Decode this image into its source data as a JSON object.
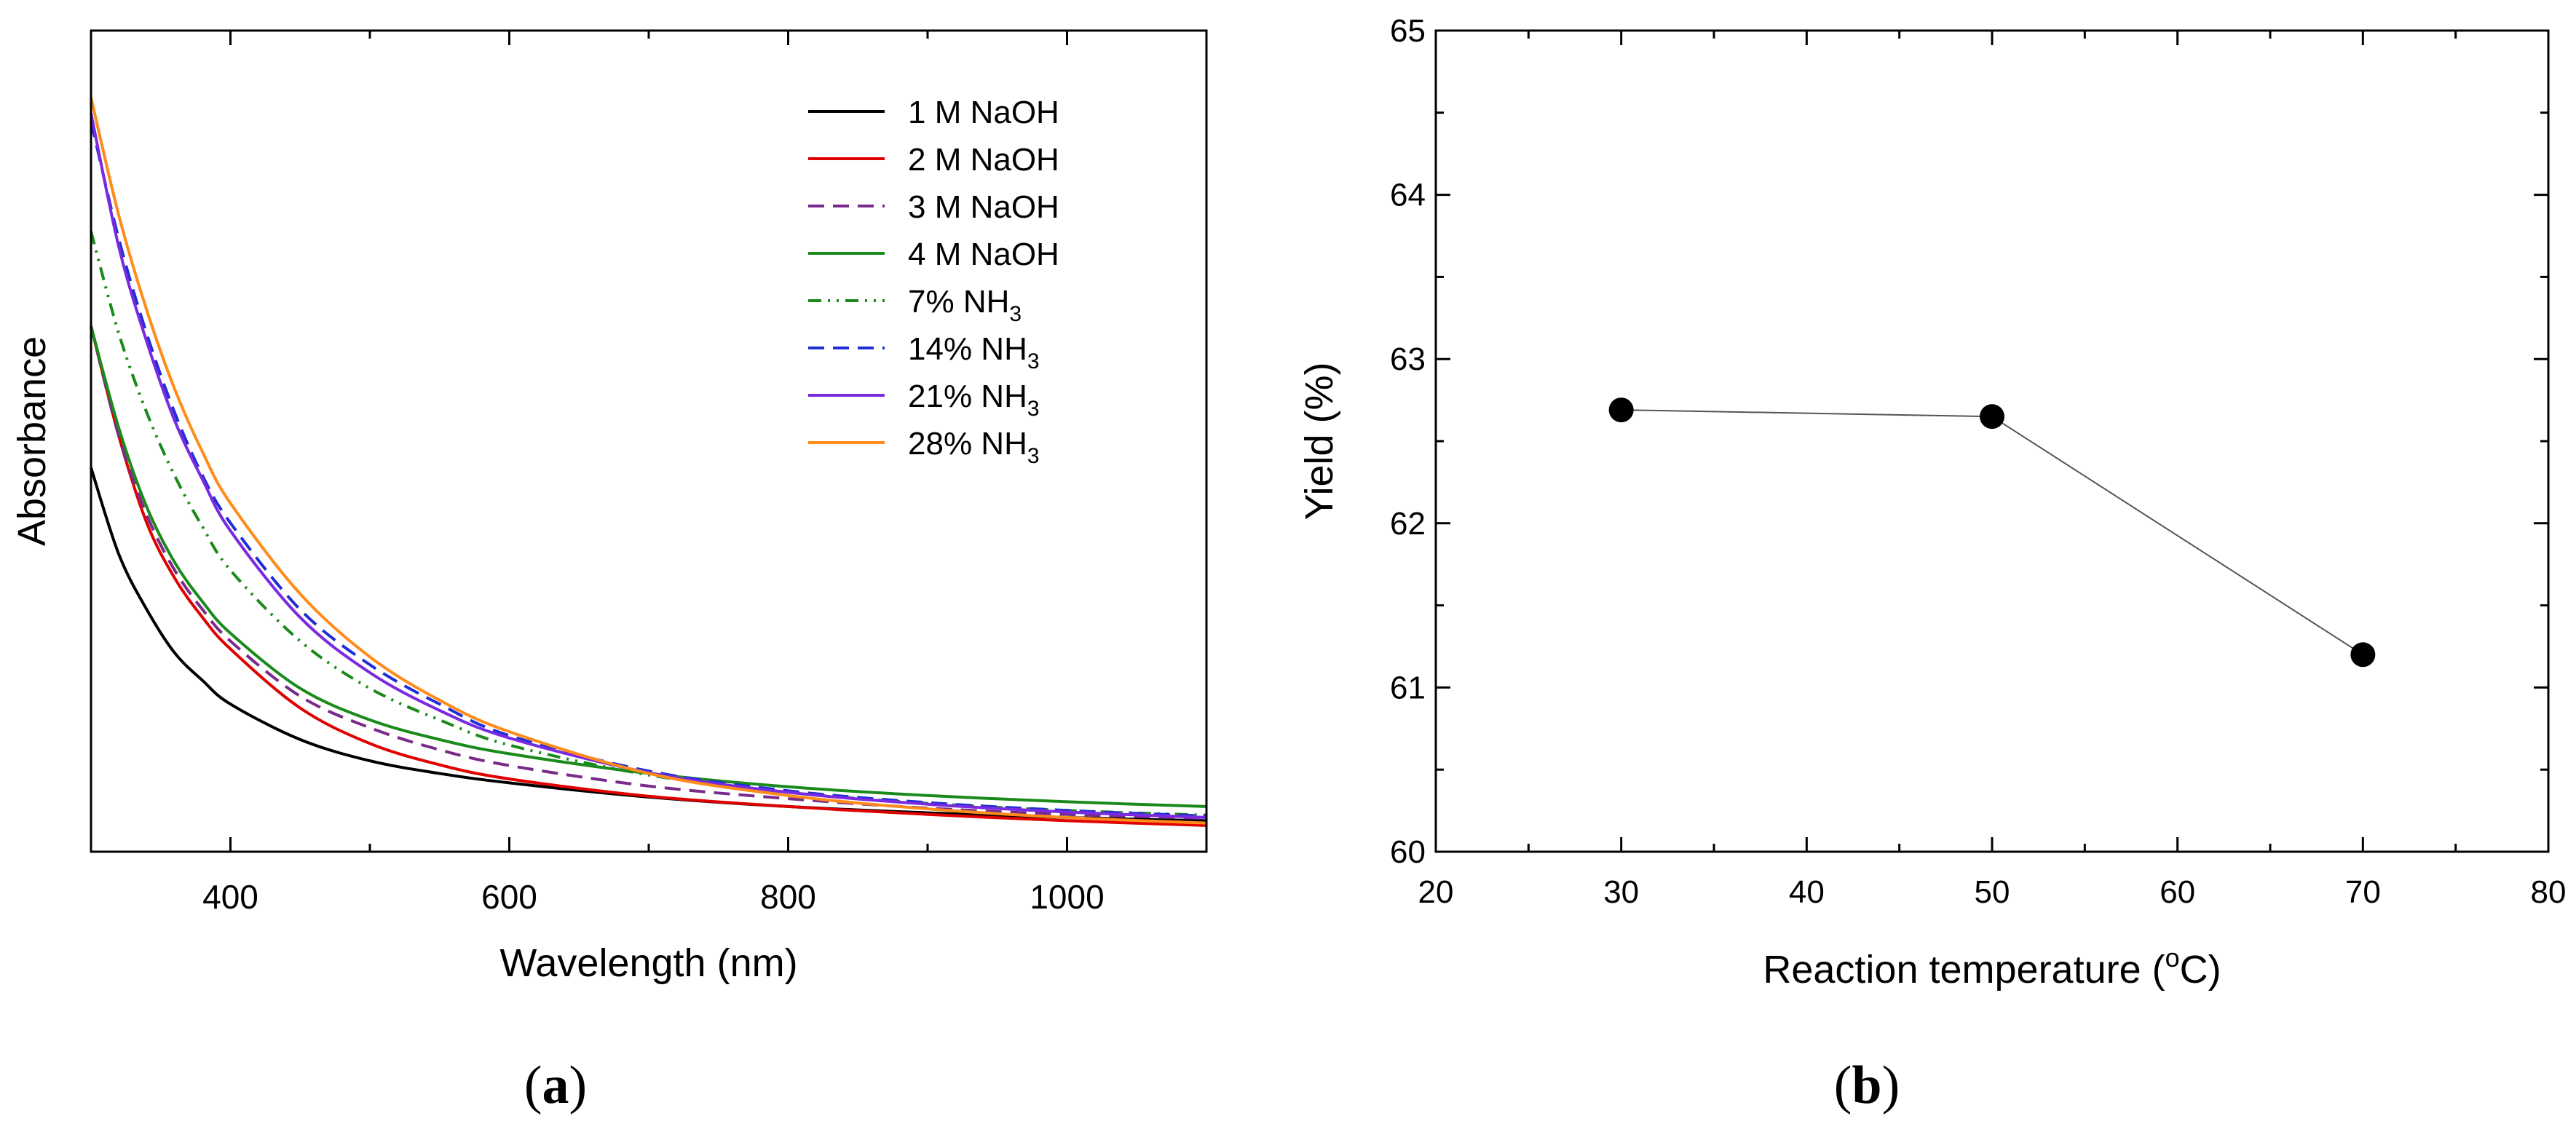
{
  "chart_data": [
    {
      "panel_label": "(a)",
      "panel_letter": "a",
      "type": "line",
      "title": "",
      "xlabel": "Wavelength (nm)",
      "ylabel": "Absorbance",
      "xlim": [
        300,
        1100
      ],
      "ylim": [
        0,
        1
      ],
      "x_ticks": [
        400,
        600,
        800,
        1000
      ],
      "x_tick_labels": [
        "400",
        "600",
        "800",
        "1000"
      ],
      "x_minor_ticks": [
        300,
        500,
        700,
        900,
        1100
      ],
      "y_ticks_labeled": false,
      "legend_position": "top-right",
      "series": [
        {
          "name": "1 M NaOH",
          "label_main": "1 M NaOH",
          "label_sub": "",
          "color": "#000000",
          "dash": "solid",
          "x": [
            300,
            320,
            340,
            360,
            380,
            400,
            450,
            500,
            550,
            600,
            700,
            800,
            900,
            1000,
            1100
          ],
          "values": [
            0.48,
            0.37,
            0.3,
            0.245,
            0.21,
            0.18,
            0.135,
            0.108,
            0.092,
            0.08,
            0.062,
            0.05,
            0.042,
            0.036,
            0.032
          ]
        },
        {
          "name": "2 M NaOH",
          "label_main": "2 M NaOH",
          "label_sub": "",
          "color": "#e00000",
          "dash": "solid",
          "x": [
            300,
            320,
            340,
            360,
            380,
            400,
            450,
            500,
            550,
            600,
            700,
            800,
            900,
            1000,
            1100
          ],
          "values": [
            0.66,
            0.52,
            0.41,
            0.34,
            0.29,
            0.25,
            0.175,
            0.13,
            0.103,
            0.085,
            0.063,
            0.05,
            0.04,
            0.032,
            0.026
          ]
        },
        {
          "name": "3 M NaOH",
          "label_main": "3 M NaOH",
          "label_sub": "",
          "color": "#7a2a8a",
          "dash": "dashed",
          "x": [
            300,
            320,
            340,
            360,
            380,
            400,
            450,
            500,
            550,
            600,
            700,
            800,
            900,
            1000,
            1100
          ],
          "values": [
            0.66,
            0.52,
            0.42,
            0.35,
            0.3,
            0.26,
            0.19,
            0.15,
            0.122,
            0.102,
            0.076,
            0.06,
            0.048,
            0.04,
            0.035
          ]
        },
        {
          "name": "4 M NaOH",
          "label_main": "4 M NaOH",
          "label_sub": "",
          "color": "#1a8a1a",
          "dash": "solid",
          "x": [
            300,
            320,
            340,
            360,
            380,
            400,
            450,
            500,
            550,
            600,
            700,
            800,
            900,
            1000,
            1100
          ],
          "values": [
            0.66,
            0.53,
            0.43,
            0.36,
            0.31,
            0.27,
            0.2,
            0.16,
            0.135,
            0.117,
            0.092,
            0.075,
            0.064,
            0.056,
            0.05
          ]
        },
        {
          "name": "7% NH3",
          "label_main": "7% NH",
          "label_sub": "3",
          "color": "#1a8a1a",
          "dash": "dashdotdot",
          "x": [
            300,
            320,
            340,
            360,
            380,
            400,
            450,
            500,
            550,
            600,
            700,
            800,
            900,
            1000,
            1100
          ],
          "values": [
            0.78,
            0.65,
            0.55,
            0.47,
            0.405,
            0.35,
            0.26,
            0.2,
            0.16,
            0.128,
            0.09,
            0.068,
            0.054,
            0.045,
            0.039
          ]
        },
        {
          "name": "14% NH3",
          "label_main": "14% NH",
          "label_sub": "3",
          "color": "#1f2fd6",
          "dash": "dashed",
          "x": [
            300,
            320,
            340,
            360,
            380,
            400,
            450,
            500,
            550,
            600,
            700,
            800,
            900,
            1000,
            1100
          ],
          "values": [
            0.92,
            0.77,
            0.65,
            0.55,
            0.47,
            0.41,
            0.3,
            0.23,
            0.18,
            0.14,
            0.095,
            0.07,
            0.055,
            0.045,
            0.038
          ]
        },
        {
          "name": "21% NH3",
          "label_main": "21% NH",
          "label_sub": "3",
          "color": "#7a2ae0",
          "dash": "solid",
          "x": [
            300,
            320,
            340,
            360,
            380,
            400,
            450,
            500,
            550,
            600,
            700,
            800,
            900,
            1000,
            1100
          ],
          "values": [
            0.93,
            0.76,
            0.64,
            0.54,
            0.465,
            0.4,
            0.29,
            0.22,
            0.172,
            0.137,
            0.093,
            0.068,
            0.053,
            0.043,
            0.036
          ]
        },
        {
          "name": "28% NH3",
          "label_main": "28% NH",
          "label_sub": "3",
          "color": "#ff8c1a",
          "dash": "solid",
          "x": [
            300,
            320,
            340,
            360,
            380,
            400,
            450,
            500,
            550,
            600,
            700,
            800,
            900,
            1000,
            1100
          ],
          "values": [
            0.95,
            0.8,
            0.68,
            0.58,
            0.5,
            0.435,
            0.32,
            0.24,
            0.185,
            0.145,
            0.092,
            0.064,
            0.047,
            0.036,
            0.029
          ]
        }
      ]
    },
    {
      "panel_label": "(b)",
      "panel_letter": "b",
      "type": "scatter",
      "title": "",
      "xlabel": "Reaction temperature (°C)",
      "xlabel_prefix": "Reaction temperature (",
      "xlabel_sup": "o",
      "xlabel_suffix": "C)",
      "ylabel": "Yield (%)",
      "xlim": [
        20,
        80
      ],
      "ylim": [
        60,
        65
      ],
      "x_ticks": [
        20,
        30,
        40,
        50,
        60,
        70,
        80
      ],
      "x_tick_labels": [
        "20",
        "30",
        "40",
        "50",
        "60",
        "70",
        "80"
      ],
      "y_ticks": [
        60,
        61,
        62,
        63,
        64,
        65
      ],
      "y_tick_labels": [
        "60",
        "61",
        "62",
        "63",
        "64",
        "65"
      ],
      "connected": true,
      "series": [
        {
          "name": "Yield",
          "color": "#000000",
          "x": [
            30,
            50,
            70
          ],
          "values": [
            62.69,
            62.65,
            61.2
          ]
        }
      ]
    }
  ]
}
